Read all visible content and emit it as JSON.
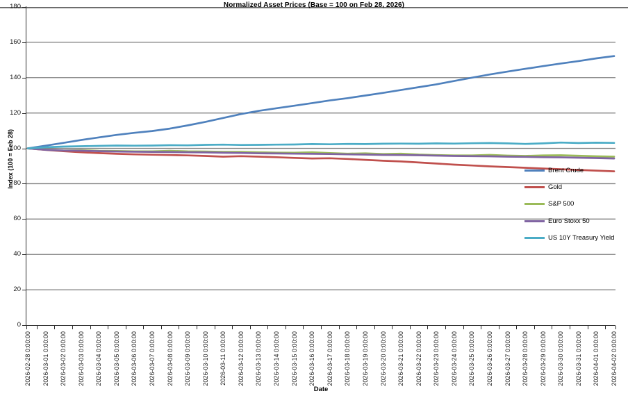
{
  "chart_data": {
    "type": "line",
    "title": "Normalized Asset Prices (Base = 100 on Feb 28, 2026)",
    "xlabel": "Date",
    "ylabel": "Index (100 = Feb 28)",
    "ylim": [
      0,
      180
    ],
    "ytick_step": 20,
    "grid": true,
    "legend_position": "inside-right",
    "gridline_color": "#7f7f7f",
    "x_labels": [
      "2026-02-28 0:00:00",
      "2026-03-01 0:00:00",
      "2026-03-02 0:00:00",
      "2026-03-03 0:00:00",
      "2026-03-04 0:00:00",
      "2026-03-05 0:00:00",
      "2026-03-06 0:00:00",
      "2026-03-07 0:00:00",
      "2026-03-08 0:00:00",
      "2026-03-09 0:00:00",
      "2026-03-10 0:00:00",
      "2026-03-11 0:00:00",
      "2026-03-12 0:00:00",
      "2026-03-13 0:00:00",
      "2026-03-14 0:00:00",
      "2026-03-15 0:00:00",
      "2026-03-16 0:00:00",
      "2026-03-17 0:00:00",
      "2026-03-18 0:00:00",
      "2026-03-19 0:00:00",
      "2026-03-20 0:00:00",
      "2026-03-21 0:00:00",
      "2026-03-22 0:00:00",
      "2026-03-23 0:00:00",
      "2026-03-24 0:00:00",
      "2026-03-25 0:00:00",
      "2026-03-26 0:00:00",
      "2026-03-27 0:00:00",
      "2026-03-28 0:00:00",
      "2026-03-29 0:00:00",
      "2026-03-30 0:00:00",
      "2026-03-31 0:00:00",
      "2026-04-01 0:00:00",
      "2026-04-02 0:00:00"
    ],
    "series": [
      {
        "name": "Brent Crude",
        "color": "#4F81BD",
        "values": [
          100,
          101.5,
          103.1,
          104.7,
          106.2,
          107.6,
          108.8,
          109.8,
          111.2,
          113.0,
          115.0,
          117.2,
          119.4,
          121.2,
          122.7,
          124.1,
          125.6,
          127.1,
          128.4,
          129.9,
          131.4,
          133.0,
          134.6,
          136.2,
          138.1,
          140.0,
          141.8,
          143.4,
          145.0,
          146.5,
          148.0,
          149.4,
          150.9,
          152.2
        ]
      },
      {
        "name": "Gold",
        "color": "#C0504D",
        "values": [
          100,
          99.1,
          98.4,
          97.8,
          97.3,
          96.9,
          96.6,
          96.4,
          96.2,
          96.0,
          95.7,
          95.3,
          95.6,
          95.3,
          95.0,
          94.6,
          94.3,
          94.4,
          94.0,
          93.5,
          93.0,
          92.6,
          92.0,
          91.4,
          90.8,
          90.3,
          89.8,
          89.4,
          89.0,
          88.6,
          88.2,
          87.8,
          87.4,
          87.0
        ]
      },
      {
        "name": "S&P 500",
        "color": "#9BBB59",
        "values": [
          100,
          99.3,
          98.8,
          99.0,
          98.6,
          98.5,
          98.3,
          98.3,
          98.6,
          98.3,
          98.2,
          98.0,
          98.0,
          97.8,
          97.6,
          97.5,
          97.8,
          97.3,
          97.0,
          97.2,
          96.8,
          97.0,
          96.5,
          96.2,
          96.0,
          96.0,
          96.3,
          95.9,
          95.7,
          96.0,
          96.1,
          95.8,
          95.5,
          95.3
        ]
      },
      {
        "name": "Euro Stoxx 50",
        "color": "#8064A2",
        "values": [
          100,
          99.2,
          98.8,
          98.7,
          98.4,
          98.2,
          98.1,
          98.0,
          97.9,
          97.8,
          97.7,
          97.5,
          97.4,
          97.2,
          97.1,
          97.0,
          96.9,
          96.8,
          96.6,
          96.5,
          96.3,
          96.2,
          96.1,
          95.9,
          95.7,
          95.6,
          95.5,
          95.3,
          95.2,
          95.0,
          94.9,
          94.7,
          94.5,
          94.3
        ]
      },
      {
        "name": "US 10Y Treasury Yield",
        "color": "#4BACC6",
        "values": [
          100,
          100.6,
          101.0,
          101.2,
          101.4,
          101.6,
          101.5,
          101.6,
          101.8,
          101.7,
          102.0,
          102.1,
          101.9,
          102.0,
          102.1,
          102.2,
          102.4,
          102.3,
          102.5,
          102.4,
          102.6,
          102.7,
          102.6,
          102.8,
          102.7,
          102.9,
          103.0,
          102.8,
          102.5,
          102.8,
          103.3,
          103.0,
          103.2,
          103.1
        ]
      }
    ]
  }
}
